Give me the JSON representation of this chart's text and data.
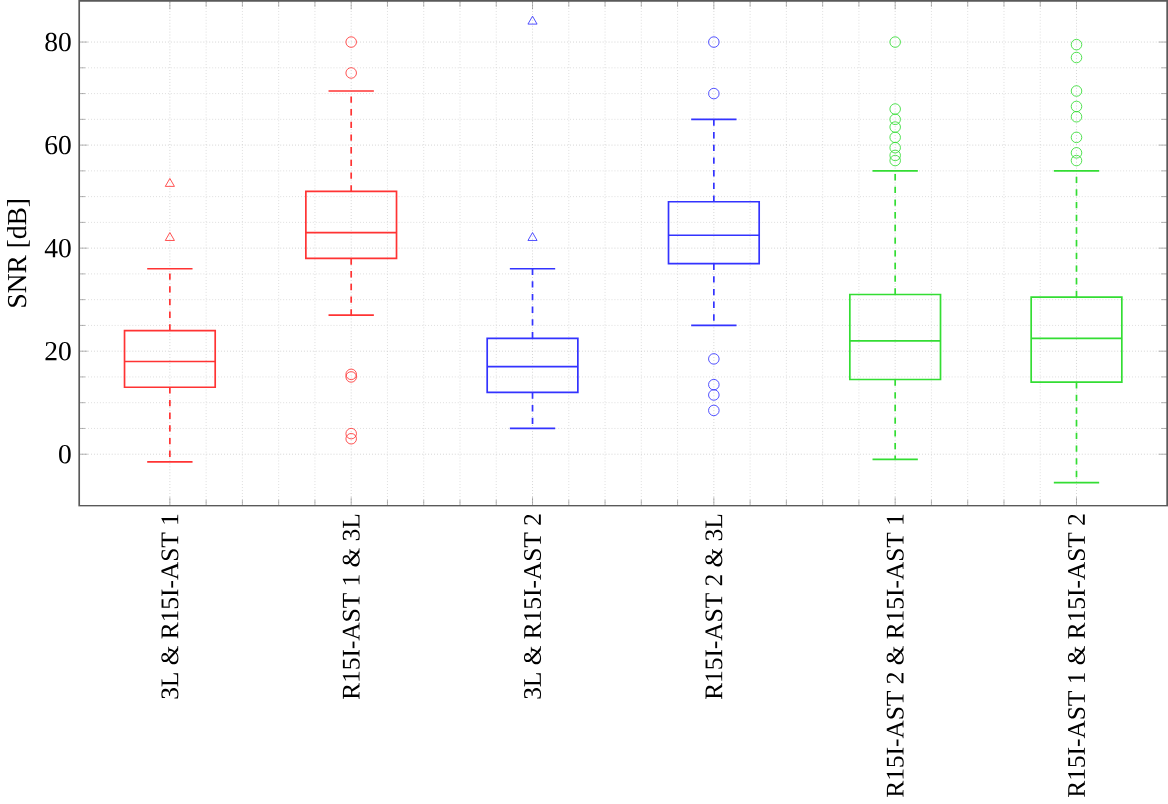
{
  "chart_data": {
    "type": "box",
    "ylabel": "SNR [dB]",
    "categories": [
      "3L & R15I-AST 1",
      "R15I-AST 1 & 3L",
      "3L & R15I-AST 2",
      "R15I-AST 2 & 3L",
      "R15I-AST 2 & R15I-AST 1",
      "R15I-AST 1 & R15I-AST 2"
    ],
    "ylim": [
      -10,
      88
    ],
    "yticks": [
      0,
      20,
      40,
      60,
      80
    ],
    "grid": true,
    "series": [
      {
        "color": "#ff3333",
        "marker": "triangle",
        "boxes": [
          {
            "low": -1.5,
            "q1": 13,
            "median": 18,
            "q3": 24,
            "high": 36,
            "outliers": [
              42,
              52.5
            ]
          },
          null,
          null,
          null,
          null,
          null
        ]
      },
      {
        "color": "#ff3333",
        "marker": "circle",
        "boxes": [
          null,
          {
            "low": 27,
            "q1": 38,
            "median": 43,
            "q3": 51,
            "high": 70.5,
            "outliers": [
              80,
              74,
              15.5,
              15,
              4,
              3
            ]
          },
          null,
          null,
          null,
          null
        ]
      },
      {
        "color": "#3333ff",
        "marker": "triangle",
        "boxes": [
          null,
          null,
          {
            "low": 5,
            "q1": 12,
            "median": 17,
            "q3": 22.5,
            "high": 36,
            "outliers": [
              42,
              84
            ]
          },
          null,
          null,
          null
        ]
      },
      {
        "color": "#3333ff",
        "marker": "circle",
        "boxes": [
          null,
          null,
          null,
          {
            "low": 25,
            "q1": 37,
            "median": 42.5,
            "q3": 49,
            "high": 65,
            "outliers": [
              80,
              70,
              18.5,
              13.5,
              11.5,
              8.5
            ]
          },
          null,
          null
        ]
      },
      {
        "color": "#33dd33",
        "marker": "circle",
        "boxes": [
          null,
          null,
          null,
          null,
          {
            "low": -1,
            "q1": 14.5,
            "median": 22,
            "q3": 31,
            "high": 55,
            "outliers": [
              80,
              67,
              65,
              63.5,
              61.5,
              59.5,
              58,
              57
            ]
          },
          null
        ]
      },
      {
        "color": "#33dd33",
        "marker": "circle",
        "boxes": [
          null,
          null,
          null,
          null,
          null,
          {
            "low": -5.5,
            "q1": 14,
            "median": 22.5,
            "q3": 30.5,
            "high": 55,
            "outliers": [
              79.5,
              77,
              70.5,
              67.5,
              65.5,
              61.5,
              58.5,
              57
            ]
          }
        ]
      }
    ]
  }
}
